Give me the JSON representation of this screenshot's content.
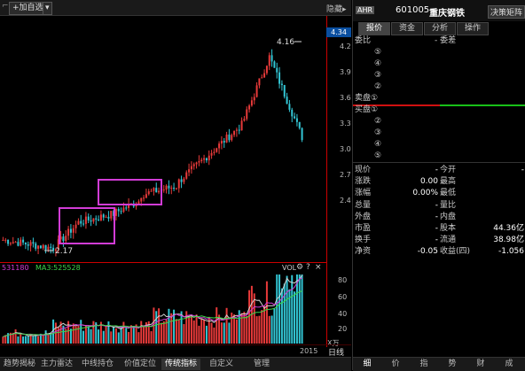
{
  "toolbar": {
    "add_favorite": "+加自选",
    "dropdown": "▾",
    "hide": "隐藏",
    "collapse": "▸"
  },
  "price_axis": {
    "current": "4.34",
    "ticks": [
      "4.2",
      "3.9",
      "3.6",
      "3.3",
      "3.0",
      "2.7",
      "2.4"
    ],
    "high_label": "4.16",
    "low_label": "2.17"
  },
  "volume": {
    "ma2": "531180",
    "ma3_label": "MA3:525528",
    "vol_label": "VOL",
    "ticks": [
      "80",
      "60",
      "40",
      "20"
    ],
    "unit": "X万"
  },
  "date": {
    "year": "2015",
    "period": "日线"
  },
  "bottom_tabs": [
    "趋势揭秘",
    "主力雷达",
    "中线持仓",
    "价值定位",
    "传统指标",
    "自定义",
    "管理"
  ],
  "bottom_active": "传统指标",
  "panel": {
    "badge": "AHR",
    "code": "601005",
    "name": "重庆钢铁",
    "decision_btn": "决策矩阵",
    "tabs": [
      "报价",
      "资金",
      "分析",
      "操作"
    ],
    "active_tab": "报价",
    "weibi_label": "委比",
    "weibi_mid": "- 委差",
    "sell_levels": [
      "⑤",
      "④",
      "③",
      "②"
    ],
    "sell1": "卖盘①",
    "buy1": "买盘①",
    "buy_levels": [
      "②",
      "③",
      "④",
      "⑤"
    ],
    "quotes": [
      {
        "l": "现价",
        "v": "-",
        "m": "今开",
        "v2": "-"
      },
      {
        "l": "涨跌",
        "v": "0.00",
        "m": "最高",
        "v2": ""
      },
      {
        "l": "涨幅",
        "v": "0.00%",
        "m": "最低",
        "v2": ""
      },
      {
        "l": "总量",
        "v": "-",
        "m": "量比",
        "v2": ""
      },
      {
        "l": "外盘",
        "v": "-",
        "m": "内盘",
        "v2": ""
      },
      {
        "l": "市盈",
        "v": "-",
        "m": "股本",
        "v2": "44.36亿"
      },
      {
        "l": "换手",
        "v": "-",
        "m": "流通",
        "v2": "38.98亿"
      },
      {
        "l": "净资",
        "v": "-0.05",
        "m": "收益(四)",
        "v2": "-1.056"
      }
    ],
    "bottom_tabs": [
      "细",
      "价",
      "指",
      "势",
      "财",
      "成"
    ],
    "bottom_active": "细"
  },
  "colors": {
    "up": "#e83a3a",
    "down": "#33c7d6",
    "accent": "#c00000",
    "box": "#d23cd6"
  }
}
